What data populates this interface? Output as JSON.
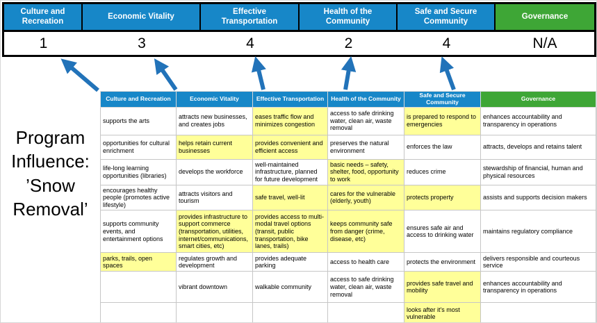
{
  "colors": {
    "header_blue": "#1787C8",
    "header_green": "#3EA636",
    "highlight_yellow": "#FFFF99",
    "arrow_blue": "#2273B9",
    "frame_black": "#000000"
  },
  "program_label": "Program Influence: ’Snow Removal’",
  "scoreboard": {
    "columns": [
      {
        "label": "Culture and Recreation",
        "score": "1",
        "color": "#1787C8"
      },
      {
        "label": "Economic Vitality",
        "score": "3",
        "color": "#1787C8"
      },
      {
        "label": "Effective Transportation",
        "score": "4",
        "color": "#1787C8"
      },
      {
        "label": "Health of the Community",
        "score": "2",
        "color": "#1787C8"
      },
      {
        "label": "Safe and Secure Community",
        "score": "4",
        "color": "#1787C8"
      },
      {
        "label": "Governance",
        "score": "N/A",
        "color": "#3EA636"
      }
    ]
  },
  "matrix": {
    "headers": [
      {
        "label": "Culture and Recreation",
        "color": "#1787C8"
      },
      {
        "label": "Economic Vitality",
        "color": "#1787C8"
      },
      {
        "label": "Effective Transportation",
        "color": "#1787C8"
      },
      {
        "label": "Health of the Community",
        "color": "#1787C8"
      },
      {
        "label": "Safe and Secure Community",
        "color": "#1787C8"
      },
      {
        "label": "Governance",
        "color": "#3EA636"
      }
    ],
    "rows": [
      [
        {
          "t": "supports the arts",
          "h": false
        },
        {
          "t": "attracts new businesses, and creates jobs",
          "h": false
        },
        {
          "t": "eases traffic flow and minimizes congestion",
          "h": true
        },
        {
          "t": "access to safe drinking water, clean air, waste removal",
          "h": false
        },
        {
          "t": "is prepared to respond to emergencies",
          "h": true
        },
        {
          "t": "enhances accountability and transparency in operations",
          "h": false
        }
      ],
      [
        {
          "t": "opportunities for cultural enrichment",
          "h": false
        },
        {
          "t": "helps retain current businesses",
          "h": true
        },
        {
          "t": "provides convenient and efficient access",
          "h": true
        },
        {
          "t": "preserves the natural environment",
          "h": false
        },
        {
          "t": "enforces the law",
          "h": false
        },
        {
          "t": "attracts, develops and retains talent",
          "h": false
        }
      ],
      [
        {
          "t": "life-long learning opportunities (libraries)",
          "h": false
        },
        {
          "t": "develops the workforce",
          "h": false
        },
        {
          "t": "well-maintained infrastructure, planned for future development",
          "h": false
        },
        {
          "t": "basic needs – safety, shelter, food, opportunity to work",
          "h": true
        },
        {
          "t": "reduces crime",
          "h": false
        },
        {
          "t": "stewardship of financial, human and physical resources",
          "h": false
        }
      ],
      [
        {
          "t": "encourages healthy people (promotes active lifestyle)",
          "h": false
        },
        {
          "t": "attracts visitors and tourism",
          "h": false
        },
        {
          "t": "safe travel, well-lit",
          "h": true
        },
        {
          "t": "cares for the vulnerable (elderly, youth)",
          "h": true
        },
        {
          "t": "protects property",
          "h": true
        },
        {
          "t": "assists and supports decision makers",
          "h": false
        }
      ],
      [
        {
          "t": "supports community events, and entertainment options",
          "h": false
        },
        {
          "t": "provides infrastructure to support commerce (transportation, utilities, internet/communications, smart cities, etc)",
          "h": true
        },
        {
          "t": "provides access to multi-modal travel options (transit, public transportation, bike lanes, trails)",
          "h": true
        },
        {
          "t": "keeps community safe from danger (crime, disease, etc)",
          "h": true
        },
        {
          "t": "ensures safe air and access to drinking water",
          "h": false
        },
        {
          "t": "maintains regulatory compliance",
          "h": false
        }
      ],
      [
        {
          "t": "parks, trails, open spaces",
          "h": true
        },
        {
          "t": "regulates growth and development",
          "h": false
        },
        {
          "t": "provides adequate parking",
          "h": false
        },
        {
          "t": "access to health care",
          "h": false
        },
        {
          "t": "protects the environment",
          "h": false
        },
        {
          "t": "delivers responsible and courteous service",
          "h": false
        }
      ],
      [
        {
          "t": "",
          "h": false
        },
        {
          "t": "vibrant downtown",
          "h": false
        },
        {
          "t": "walkable community",
          "h": false
        },
        {
          "t": "access to safe drinking water, clean air, waste removal",
          "h": false
        },
        {
          "t": "provides safe travel and mobility",
          "h": true
        },
        {
          "t": "enhances accountability and transparency in operations",
          "h": false
        }
      ],
      [
        {
          "t": "",
          "h": false
        },
        {
          "t": "",
          "h": false
        },
        {
          "t": "",
          "h": false
        },
        {
          "t": "",
          "h": false
        },
        {
          "t": "looks after it's most vulnerable",
          "h": true
        },
        {
          "t": "",
          "h": false
        }
      ]
    ]
  }
}
